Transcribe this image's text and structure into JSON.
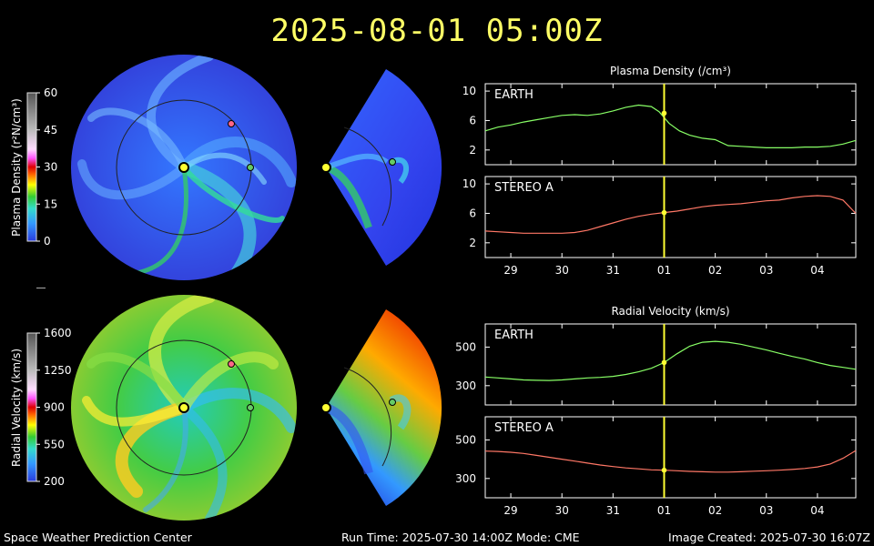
{
  "header": {
    "title": "2025-08-01  05:00Z"
  },
  "footer": {
    "left": "Space Weather Prediction Center",
    "middle": "Run Time: 2025-07-30 14:00Z  Mode: CME",
    "right": "Image Created: 2025-07-30 16:07Z"
  },
  "colorbars": {
    "density": {
      "label": "Plasma Density (r²N/cm³)",
      "ticks": [
        "60",
        "45",
        "30",
        "15",
        "0"
      ],
      "tick_values": [
        60,
        45,
        30,
        15,
        0
      ],
      "range": [
        0,
        60
      ]
    },
    "velocity": {
      "label": "Radial Velocity (km/s)",
      "ticks": [
        "1600",
        "1250",
        "900",
        "550",
        "200"
      ],
      "tick_values": [
        1600,
        1250,
        900,
        550,
        200
      ],
      "range": [
        200,
        1600
      ]
    }
  },
  "colors": {
    "earth_line": "#88ff66",
    "stereo_line": "#ff7766",
    "marker": "#ffff33",
    "earth_marker": "#66cc66",
    "stereo_marker": "#ff6688"
  },
  "chart_data": [
    {
      "type": "line",
      "title": "Plasma Density (/cm³)",
      "panel": "EARTH",
      "x_ticks": [
        "29",
        "30",
        "31",
        "01",
        "02",
        "03",
        "04"
      ],
      "x": [
        0,
        0.25,
        0.5,
        0.75,
        1.0,
        1.25,
        1.5,
        1.75,
        2.0,
        2.25,
        2.5,
        2.75,
        3.0,
        3.25,
        3.4,
        3.6,
        3.8,
        4.0,
        4.25,
        4.5,
        4.75,
        5.0,
        5.25,
        5.5,
        5.75,
        6.0,
        6.25,
        6.5,
        6.75,
        7.0,
        7.25
      ],
      "values": [
        4.6,
        5.1,
        5.4,
        5.8,
        6.1,
        6.4,
        6.7,
        6.8,
        6.7,
        6.9,
        7.3,
        7.8,
        8.1,
        7.9,
        7.2,
        5.6,
        4.6,
        4.0,
        3.6,
        3.4,
        2.6,
        2.5,
        2.4,
        2.3,
        2.3,
        2.3,
        2.4,
        2.4,
        2.5,
        2.8,
        3.3
      ],
      "y_ticks": [
        "10",
        "6",
        "2"
      ],
      "ylim": [
        0,
        11
      ],
      "current_x": 3.5,
      "current_y": 7.0
    },
    {
      "type": "line",
      "panel": "STEREO A",
      "x_ticks": [
        "29",
        "30",
        "31",
        "01",
        "02",
        "03",
        "04"
      ],
      "x": [
        0,
        0.25,
        0.5,
        0.75,
        1.0,
        1.25,
        1.5,
        1.75,
        2.0,
        2.25,
        2.5,
        2.75,
        3.0,
        3.25,
        3.5,
        3.75,
        4.0,
        4.25,
        4.5,
        4.75,
        5.0,
        5.25,
        5.5,
        5.75,
        6.0,
        6.25,
        6.5,
        6.75,
        7.0,
        7.25
      ],
      "values": [
        3.6,
        3.5,
        3.4,
        3.3,
        3.3,
        3.3,
        3.3,
        3.4,
        3.7,
        4.2,
        4.7,
        5.2,
        5.6,
        5.9,
        6.1,
        6.3,
        6.6,
        6.9,
        7.1,
        7.2,
        7.3,
        7.5,
        7.7,
        7.8,
        8.1,
        8.3,
        8.4,
        8.3,
        7.8,
        6.0
      ],
      "y_ticks": [
        "10",
        "6",
        "2"
      ],
      "ylim": [
        0,
        11
      ],
      "current_x": 3.5,
      "current_y": 6.1
    },
    {
      "type": "line",
      "title": "Radial Velocity (km/s)",
      "panel": "EARTH",
      "x_ticks": [
        "29",
        "30",
        "31",
        "01",
        "02",
        "03",
        "04"
      ],
      "x": [
        0,
        0.25,
        0.5,
        0.75,
        1.0,
        1.25,
        1.5,
        1.75,
        2.0,
        2.25,
        2.5,
        2.75,
        3.0,
        3.25,
        3.5,
        3.75,
        4.0,
        4.25,
        4.5,
        4.75,
        5.0,
        5.25,
        5.5,
        5.75,
        6.0,
        6.25,
        6.5,
        6.75,
        7.0,
        7.25
      ],
      "values": [
        345,
        340,
        335,
        330,
        328,
        327,
        330,
        335,
        340,
        343,
        348,
        358,
        372,
        390,
        420,
        465,
        505,
        525,
        530,
        525,
        515,
        500,
        485,
        468,
        452,
        438,
        420,
        405,
        395,
        385
      ],
      "y_ticks": [
        "500",
        "300"
      ],
      "ylim": [
        200,
        620
      ],
      "current_x": 3.5,
      "current_y": 420
    },
    {
      "type": "line",
      "panel": "STEREO A",
      "x_ticks": [
        "29",
        "30",
        "31",
        "01",
        "02",
        "03",
        "04"
      ],
      "x": [
        0,
        0.25,
        0.5,
        0.75,
        1.0,
        1.25,
        1.5,
        1.75,
        2.0,
        2.25,
        2.5,
        2.75,
        3.0,
        3.25,
        3.5,
        3.75,
        4.0,
        4.25,
        4.5,
        4.75,
        5.0,
        5.25,
        5.5,
        5.75,
        6.0,
        6.25,
        6.5,
        6.75,
        7.0,
        7.25
      ],
      "values": [
        442,
        440,
        436,
        430,
        420,
        410,
        400,
        390,
        380,
        370,
        362,
        355,
        350,
        345,
        343,
        340,
        337,
        335,
        333,
        333,
        335,
        338,
        340,
        343,
        347,
        352,
        360,
        375,
        405,
        445
      ],
      "y_ticks": [
        "500",
        "300"
      ],
      "ylim": [
        200,
        620
      ],
      "current_x": 3.5,
      "current_y": 343
    }
  ]
}
